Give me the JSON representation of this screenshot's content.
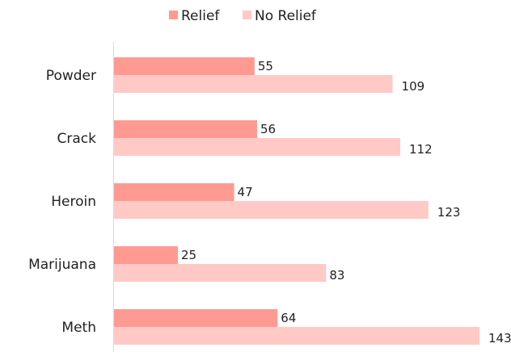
{
  "chart_data": {
    "type": "bar",
    "orientation": "horizontal",
    "categories": [
      "Powder",
      "Crack",
      "Heroin",
      "Marijuana",
      "Meth"
    ],
    "series": [
      {
        "name": "Relief",
        "values": [
          55,
          56,
          47,
          25,
          64
        ],
        "color": "#ff9a93"
      },
      {
        "name": "No Relief",
        "values": [
          109,
          112,
          123,
          83,
          143
        ],
        "color": "#ffc9c6"
      }
    ],
    "xlim": [
      0,
      143
    ],
    "grid": false,
    "legend_position": "top",
    "data_labels": true
  }
}
